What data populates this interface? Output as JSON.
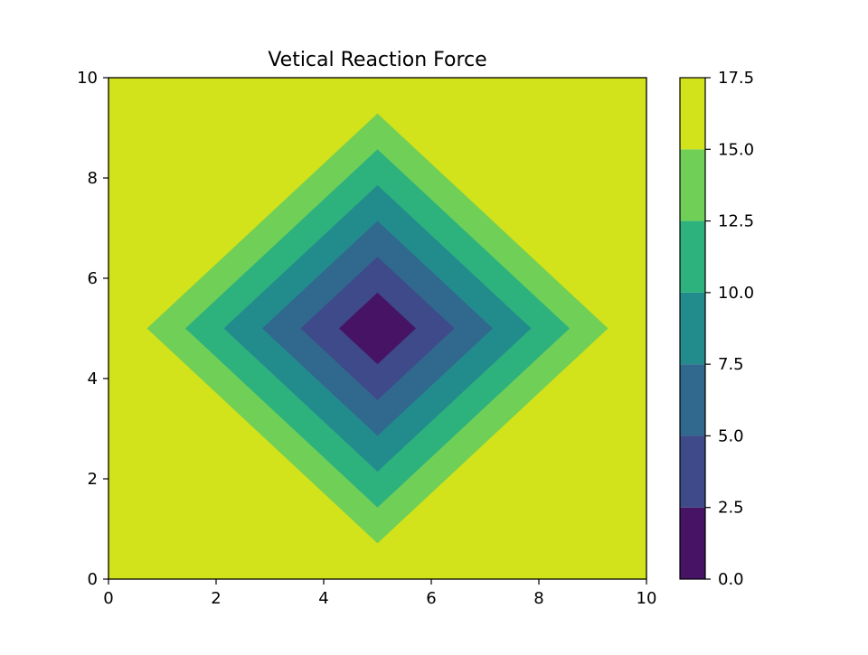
{
  "chart_data": {
    "type": "contourf",
    "title": "Vetical Reaction Force",
    "xlabel": "",
    "ylabel": "",
    "xlim": [
      0,
      10
    ],
    "ylim": [
      0,
      10
    ],
    "x_ticks": [
      0,
      2,
      4,
      6,
      8,
      10
    ],
    "y_ticks": [
      0,
      2,
      4,
      6,
      8,
      10
    ],
    "grid": false,
    "field": {
      "description_formula": "z = 3.5 * (|x - 5| + |y - 5|)",
      "center": [
        5,
        5
      ],
      "scale": 3.5
    },
    "levels": [
      0.0,
      2.5,
      5.0,
      7.5,
      10.0,
      12.5,
      15.0,
      17.5
    ],
    "colormap": [
      "#471365",
      "#3e4a89",
      "#31688e",
      "#228c8d",
      "#2db27d",
      "#70cf57",
      "#d2e21b"
    ],
    "colorbar": {
      "ticks": [
        "0.0",
        "2.5",
        "5.0",
        "7.5",
        "10.0",
        "12.5",
        "15.0",
        "17.5"
      ],
      "placement": "right"
    }
  }
}
